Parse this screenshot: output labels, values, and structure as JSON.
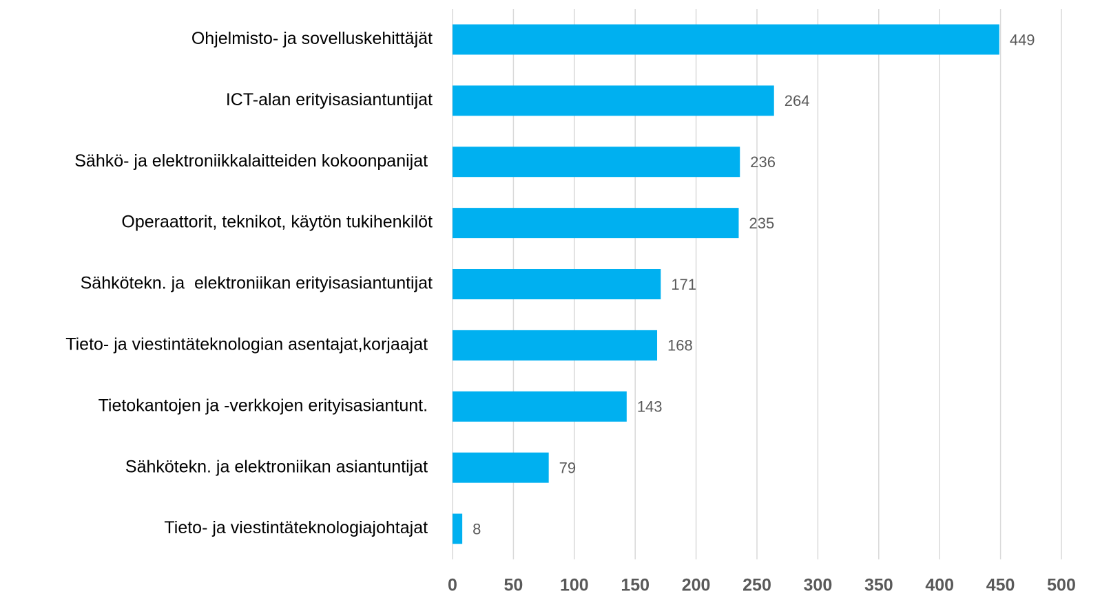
{
  "chart_data": {
    "type": "bar",
    "categories": [
      "Ohjelmisto- ja sovelluskehittäjät",
      "ICT-alan erityisasiantuntijat",
      "Sähkö- ja elektroniikkalaitteiden kokoonpanijat ",
      "Operaattorit, teknikot, käytön tukihenkilöt",
      "Sähkötekn. ja  elektroniikan erityisasiantuntijat",
      "Tieto- ja viestintäteknologian asentajat,korjaajat ",
      "Tietokantojen ja -verkkojen erityisasiantunt. ",
      "Sähkötekn. ja elektroniikan asiantuntijat ",
      "Tieto- ja viestintäteknologiajohtajat "
    ],
    "values": [
      449,
      264,
      236,
      235,
      171,
      168,
      143,
      79,
      8
    ],
    "color": "#00b0f0",
    "xlim": [
      0,
      500
    ],
    "xticks": [
      0,
      50,
      100,
      150,
      200,
      250,
      300,
      350,
      400,
      450,
      500
    ],
    "grid": true
  }
}
